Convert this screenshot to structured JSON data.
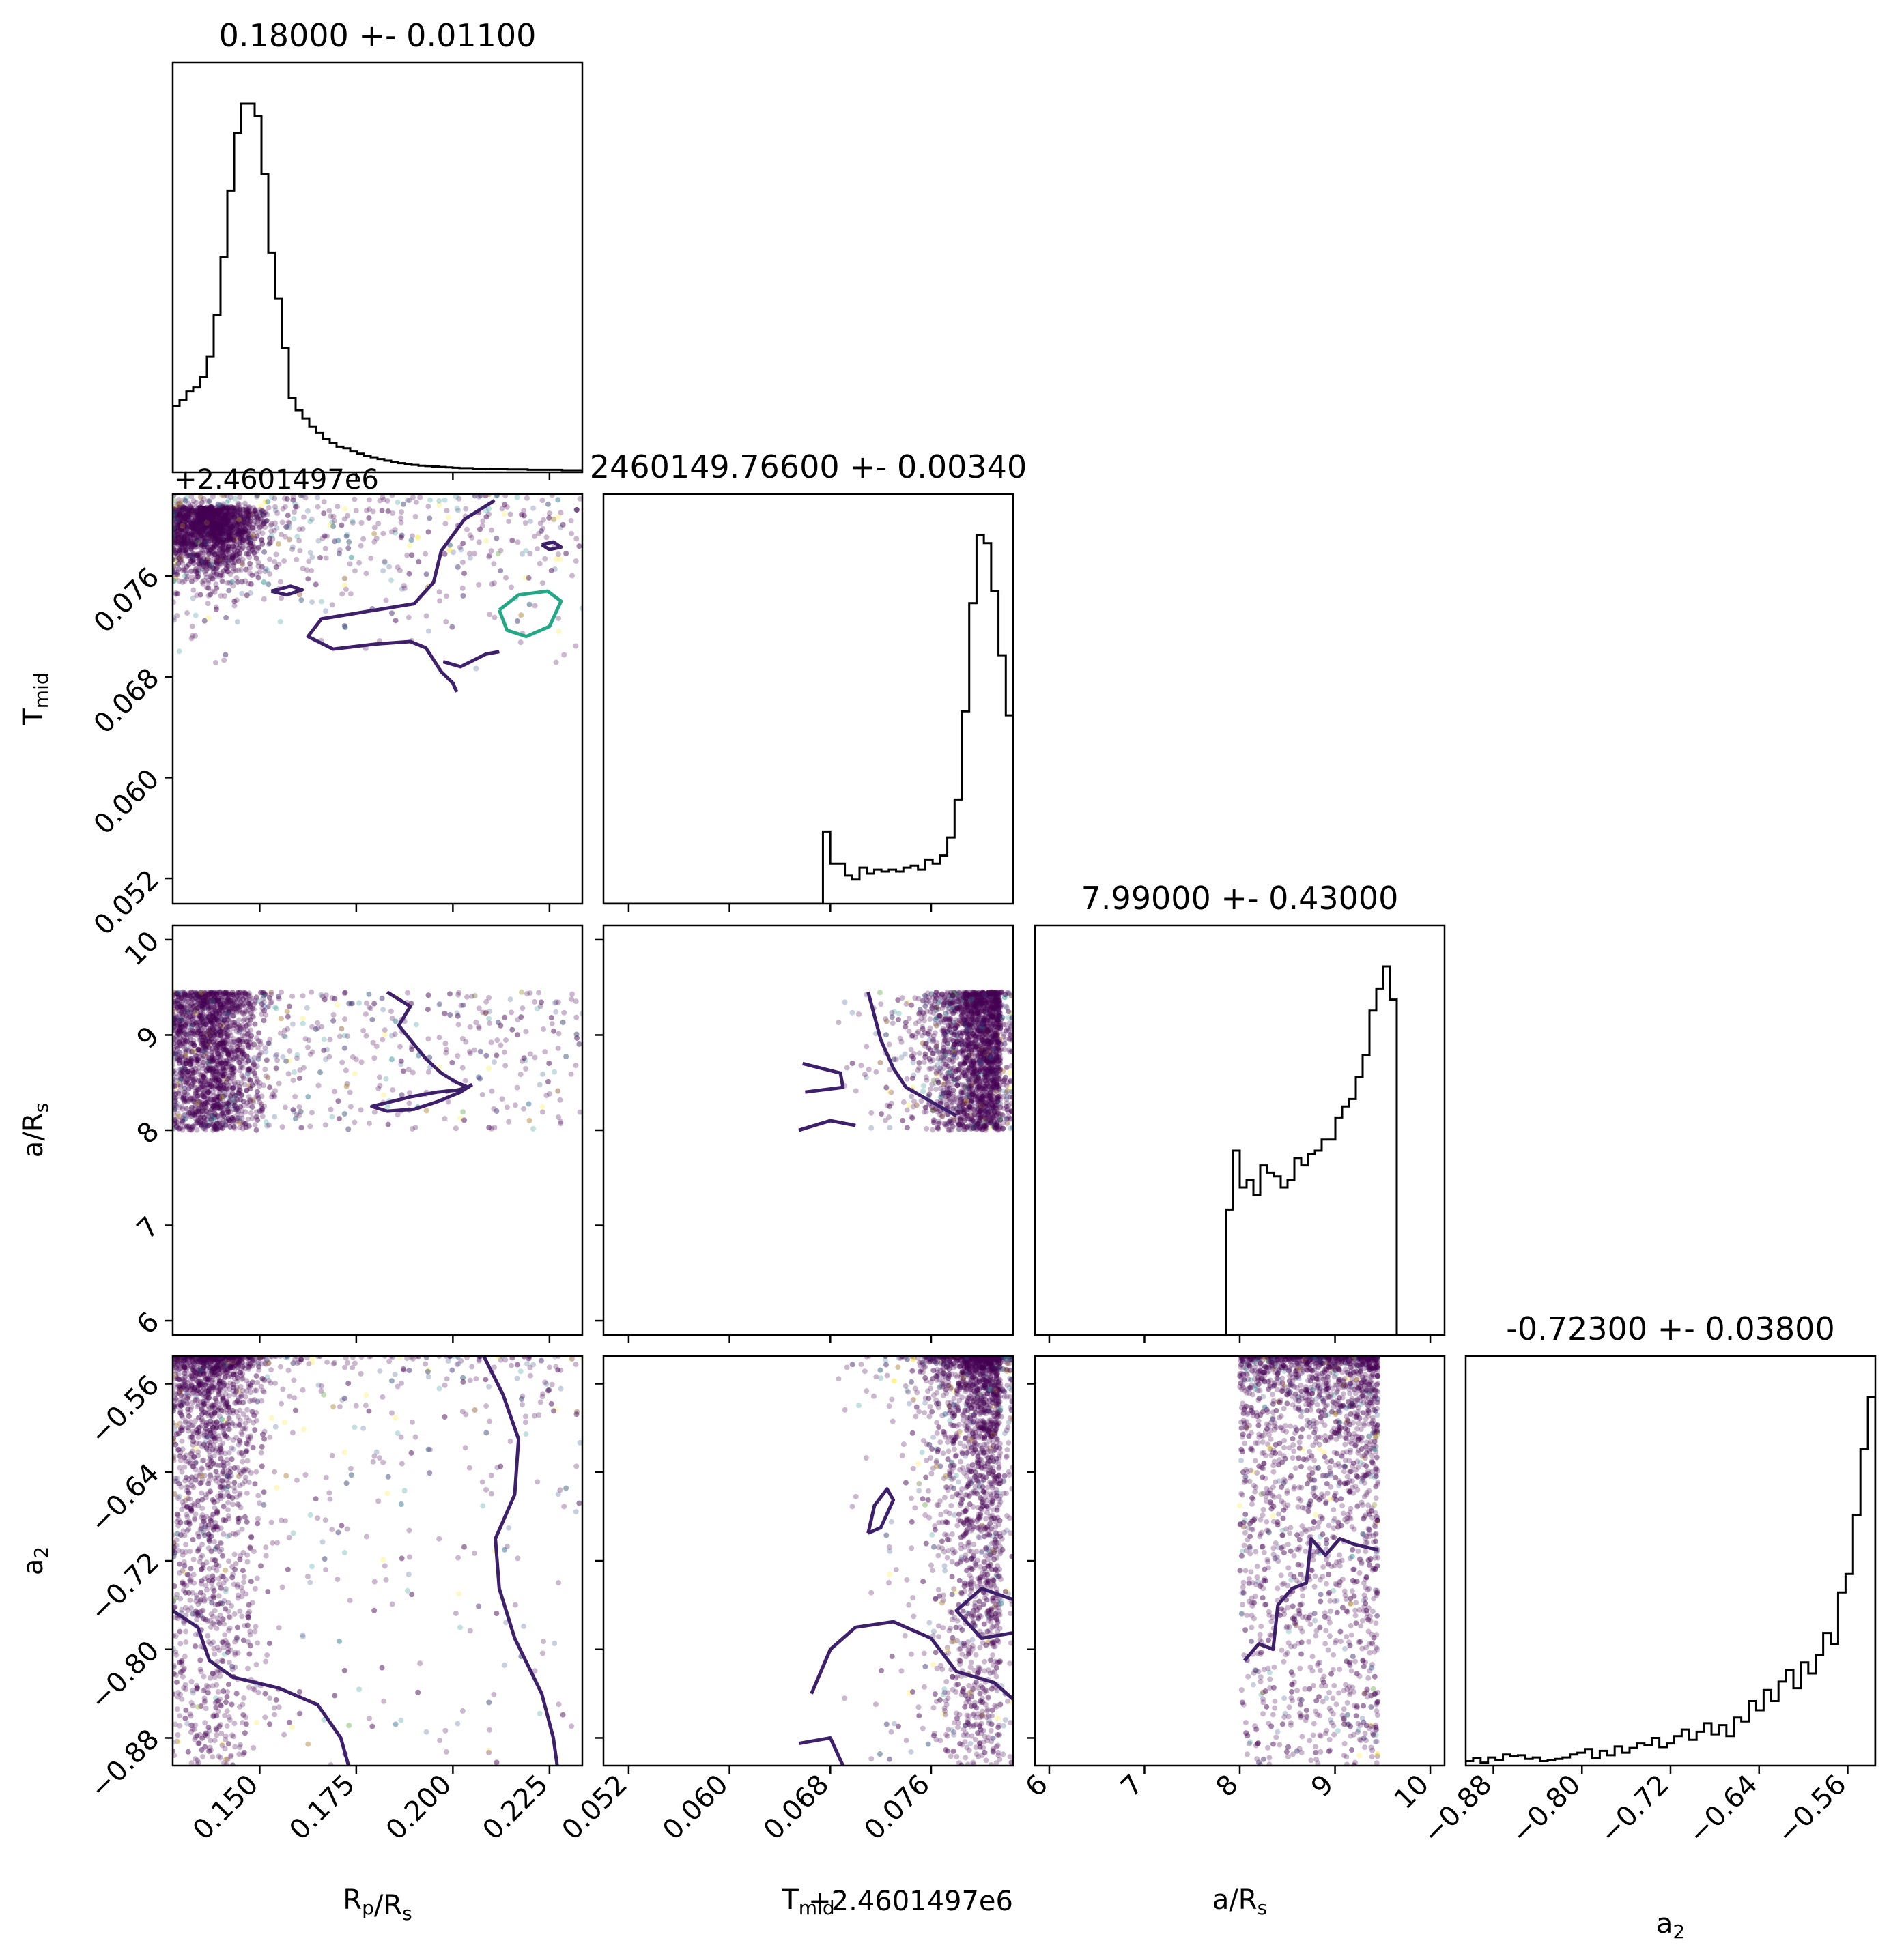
{
  "chart_data": {
    "type": "scatter",
    "kind": "corner-plot",
    "parameters": [
      {
        "id": "rp",
        "label": "R",
        "label_sub": "p",
        "label_tail": "/R",
        "label_tail_sub": "s",
        "title": "0.18000 +- 0.01100",
        "range": [
          0.1275,
          0.2335
        ],
        "ticks": [
          "0.150",
          "0.175",
          "0.200",
          "0.225"
        ],
        "tick_values": [
          0.15,
          0.175,
          0.2,
          0.225
        ]
      },
      {
        "id": "tmid",
        "label": "T",
        "label_sub": "mid",
        "title": "2460149.76600 +- 0.00340",
        "offset_text": "+2.4601497e6",
        "range": [
          0.05,
          0.0825
        ],
        "ticks": [
          "0.052",
          "0.060",
          "0.068",
          "0.076"
        ],
        "tick_values": [
          0.052,
          0.06,
          0.068,
          0.076
        ]
      },
      {
        "id": "ars",
        "label": "a/R",
        "label_sub": "s",
        "title": "7.99000 +- 0.43000",
        "range": [
          5.85,
          10.15
        ],
        "ticks": [
          "6",
          "7",
          "8",
          "9",
          "10"
        ],
        "tick_values": [
          6,
          7,
          8,
          9,
          10
        ]
      },
      {
        "id": "a2",
        "label": "a",
        "label_sub": "2",
        "title": "-0.72300 +- 0.03800",
        "range": [
          -0.905,
          -0.535
        ],
        "ticks": [
          "−0.88",
          "−0.80",
          "−0.72",
          "−0.64",
          "−0.56"
        ],
        "tick_values": [
          -0.88,
          -0.8,
          -0.72,
          -0.64,
          -0.56
        ]
      }
    ],
    "histograms": [
      {
        "param": "rp",
        "range": [
          0.1275,
          0.2335
        ],
        "counts": [
          160,
          175,
          195,
          205,
          230,
          280,
          380,
          520,
          680,
          820,
          890,
          890,
          860,
          720,
          530,
          420,
          300,
          180,
          150,
          130,
          110,
          95,
          80,
          70,
          62,
          58,
          50,
          45,
          40,
          36,
          32,
          28,
          25,
          22,
          20,
          18,
          16,
          15,
          14,
          13,
          12,
          11,
          10,
          10,
          9,
          9,
          8,
          8,
          8,
          7,
          7,
          7,
          6,
          6,
          6,
          6,
          6,
          5,
          5,
          5
        ]
      },
      {
        "param": "tmid",
        "range": [
          0.05,
          0.0825
        ],
        "counts": [
          0,
          0,
          0,
          0,
          0,
          0,
          0,
          0,
          0,
          0,
          0,
          0,
          0,
          0,
          0,
          0,
          0,
          0,
          0,
          0,
          0,
          0,
          0,
          0,
          0,
          0,
          0,
          0,
          0,
          0,
          180,
          100,
          100,
          70,
          60,
          90,
          75,
          85,
          80,
          85,
          80,
          90,
          95,
          85,
          110,
          100,
          120,
          165,
          260,
          480,
          750,
          920,
          900,
          780,
          620,
          470
        ]
      },
      {
        "param": "ars",
        "range": [
          5.85,
          10.15
        ],
        "counts": [
          0,
          0,
          0,
          0,
          0,
          0,
          0,
          0,
          0,
          0,
          0,
          0,
          0,
          0,
          0,
          0,
          0,
          0,
          0,
          0,
          0,
          0,
          0,
          0,
          0,
          0,
          0,
          0,
          340,
          500,
          400,
          420,
          380,
          460,
          440,
          430,
          400,
          420,
          480,
          460,
          490,
          500,
          530,
          530,
          590,
          620,
          640,
          700,
          760,
          880,
          940,
          1000,
          910,
          0,
          0,
          0,
          0,
          0,
          0,
          0
        ]
      },
      {
        "param": "a2",
        "range": [
          -0.905,
          -0.535
        ],
        "counts": [
          12,
          20,
          8,
          22,
          15,
          30,
          25,
          28,
          18,
          22,
          12,
          14,
          18,
          22,
          30,
          35,
          45,
          20,
          40,
          28,
          52,
          35,
          48,
          60,
          55,
          75,
          50,
          60,
          80,
          98,
          70,
          92,
          115,
          85,
          110,
          80,
          130,
          120,
          175,
          150,
          205,
          175,
          228,
          260,
          210,
          280,
          250,
          300,
          360,
          330,
          470,
          520,
          680,
          860,
          1000
        ]
      }
    ],
    "contours": [
      {
        "panel": "tmid-vs-rp",
        "level": "outer",
        "color": "#3e1f6b",
        "points": [
          [
            0.2108,
            0.082
          ],
          [
            0.203,
            0.0805
          ],
          [
            0.197,
            0.078
          ],
          [
            0.195,
            0.0755
          ],
          [
            0.19,
            0.0738
          ],
          [
            0.178,
            0.0732
          ],
          [
            0.166,
            0.0726
          ],
          [
            0.1625,
            0.0712
          ],
          [
            0.169,
            0.0702
          ],
          [
            0.18,
            0.0706
          ],
          [
            0.189,
            0.0708
          ],
          [
            0.193,
            0.0703
          ],
          [
            0.197,
            0.0684
          ],
          [
            0.2,
            0.0675
          ],
          [
            0.201,
            0.0668
          ]
        ]
      },
      {
        "panel": "tmid-vs-rp",
        "level": "outer",
        "color": "#3e1f6b",
        "points": [
          [
            0.1975,
            0.0692
          ],
          [
            0.202,
            0.0688
          ],
          [
            0.2085,
            0.0698
          ],
          [
            0.212,
            0.07
          ]
        ]
      },
      {
        "panel": "tmid-vs-rp",
        "level": "inner",
        "color": "#22a884",
        "points": [
          [
            0.212,
            0.0733
          ],
          [
            0.217,
            0.0745
          ],
          [
            0.2245,
            0.0748
          ],
          [
            0.228,
            0.074
          ],
          [
            0.225,
            0.072
          ],
          [
            0.219,
            0.0712
          ],
          [
            0.214,
            0.0717
          ],
          [
            0.212,
            0.0733
          ]
        ]
      },
      {
        "panel": "tmid-vs-rp",
        "level": "outer",
        "color": "#3e1f6b",
        "points": [
          [
            0.153,
            0.0748
          ],
          [
            0.158,
            0.0752
          ],
          [
            0.161,
            0.0749
          ],
          [
            0.157,
            0.0745
          ],
          [
            0.153,
            0.0748
          ]
        ]
      },
      {
        "panel": "tmid-vs-rp",
        "level": "outer",
        "color": "#3e1f6b",
        "points": [
          [
            0.223,
            0.0785
          ],
          [
            0.226,
            0.0787
          ],
          [
            0.228,
            0.0783
          ],
          [
            0.225,
            0.0781
          ],
          [
            0.223,
            0.0785
          ]
        ]
      },
      {
        "panel": "ars-vs-rp",
        "level": "outer",
        "color": "#3e1f6b",
        "points": [
          [
            0.183,
            9.45
          ],
          [
            0.189,
            9.3
          ],
          [
            0.186,
            9.1
          ],
          [
            0.19,
            8.9
          ],
          [
            0.193,
            8.75
          ],
          [
            0.197,
            8.6
          ],
          [
            0.201,
            8.5
          ],
          [
            0.204,
            8.45
          ],
          [
            0.201,
            8.42
          ],
          [
            0.196,
            8.4
          ],
          [
            0.189,
            8.35
          ],
          [
            0.184,
            8.3
          ],
          [
            0.179,
            8.25
          ],
          [
            0.183,
            8.2
          ],
          [
            0.19,
            8.22
          ],
          [
            0.196,
            8.3
          ],
          [
            0.202,
            8.4
          ],
          [
            0.205,
            8.48
          ]
        ]
      },
      {
        "panel": "ars-vs-tmid",
        "level": "outer",
        "color": "#3e1f6b",
        "points": [
          [
            0.078,
            8.15
          ],
          [
            0.076,
            8.3
          ],
          [
            0.074,
            8.45
          ],
          [
            0.073,
            8.65
          ],
          [
            0.072,
            8.95
          ],
          [
            0.071,
            9.45
          ]
        ]
      },
      {
        "panel": "ars-vs-tmid",
        "level": "outer",
        "color": "#3e1f6b",
        "points": [
          [
            0.0658,
            8.7
          ],
          [
            0.0688,
            8.6
          ],
          [
            0.069,
            8.45
          ],
          [
            0.066,
            8.4
          ]
        ]
      },
      {
        "panel": "ars-vs-tmid",
        "level": "outer",
        "color": "#3e1f6b",
        "points": [
          [
            0.0655,
            8.0
          ],
          [
            0.068,
            8.1
          ],
          [
            0.07,
            8.05
          ]
        ]
      },
      {
        "panel": "a2-vs-rp",
        "level": "outer",
        "color": "#3e1f6b",
        "points": [
          [
            0.208,
            -0.535
          ],
          [
            0.213,
            -0.57
          ],
          [
            0.217,
            -0.61
          ],
          [
            0.216,
            -0.66
          ],
          [
            0.211,
            -0.7
          ],
          [
            0.212,
            -0.745
          ],
          [
            0.216,
            -0.79
          ],
          [
            0.223,
            -0.84
          ],
          [
            0.226,
            -0.88
          ],
          [
            0.227,
            -0.905
          ]
        ]
      },
      {
        "panel": "a2-vs-rp",
        "level": "outer",
        "color": "#3e1f6b",
        "points": [
          [
            0.1275,
            -0.765
          ],
          [
            0.134,
            -0.78
          ],
          [
            0.137,
            -0.81
          ],
          [
            0.143,
            -0.825
          ],
          [
            0.155,
            -0.835
          ],
          [
            0.165,
            -0.85
          ],
          [
            0.171,
            -0.88
          ],
          [
            0.173,
            -0.905
          ]
        ]
      },
      {
        "panel": "a2-vs-tmid",
        "level": "outer",
        "color": "#3e1f6b",
        "points": [
          [
            0.071,
            -0.695
          ],
          [
            0.0715,
            -0.67
          ],
          [
            0.0725,
            -0.655
          ],
          [
            0.073,
            -0.665
          ],
          [
            0.072,
            -0.69
          ],
          [
            0.071,
            -0.695
          ]
        ]
      },
      {
        "panel": "a2-vs-tmid",
        "level": "outer",
        "color": "#3e1f6b",
        "points": [
          [
            0.0665,
            -0.84
          ],
          [
            0.068,
            -0.8
          ],
          [
            0.07,
            -0.78
          ],
          [
            0.073,
            -0.775
          ],
          [
            0.076,
            -0.79
          ],
          [
            0.078,
            -0.82
          ],
          [
            0.081,
            -0.83
          ],
          [
            0.0825,
            -0.845
          ]
        ]
      },
      {
        "panel": "a2-vs-tmid",
        "level": "outer",
        "color": "#3e1f6b",
        "points": [
          [
            0.0825,
            -0.755
          ],
          [
            0.08,
            -0.745
          ],
          [
            0.078,
            -0.765
          ],
          [
            0.08,
            -0.79
          ],
          [
            0.0825,
            -0.785
          ]
        ]
      },
      {
        "panel": "a2-vs-tmid",
        "level": "outer",
        "color": "#3e1f6b",
        "points": [
          [
            0.0655,
            -0.885
          ],
          [
            0.068,
            -0.88
          ],
          [
            0.069,
            -0.905
          ]
        ]
      },
      {
        "panel": "a2-vs-ars",
        "level": "outer",
        "color": "#3e1f6b",
        "points": [
          [
            8.05,
            -0.81
          ],
          [
            8.2,
            -0.795
          ],
          [
            8.35,
            -0.8
          ],
          [
            8.4,
            -0.76
          ],
          [
            8.55,
            -0.745
          ],
          [
            8.7,
            -0.74
          ],
          [
            8.75,
            -0.7
          ],
          [
            8.9,
            -0.715
          ],
          [
            9.05,
            -0.7
          ],
          [
            9.2,
            -0.705
          ],
          [
            9.45,
            -0.71
          ]
        ]
      }
    ],
    "scatter_colors": [
      "#440154",
      "#3b528b",
      "#21918c",
      "#fde725"
    ],
    "line_color": "#000000",
    "grid": false,
    "legend": "none"
  }
}
